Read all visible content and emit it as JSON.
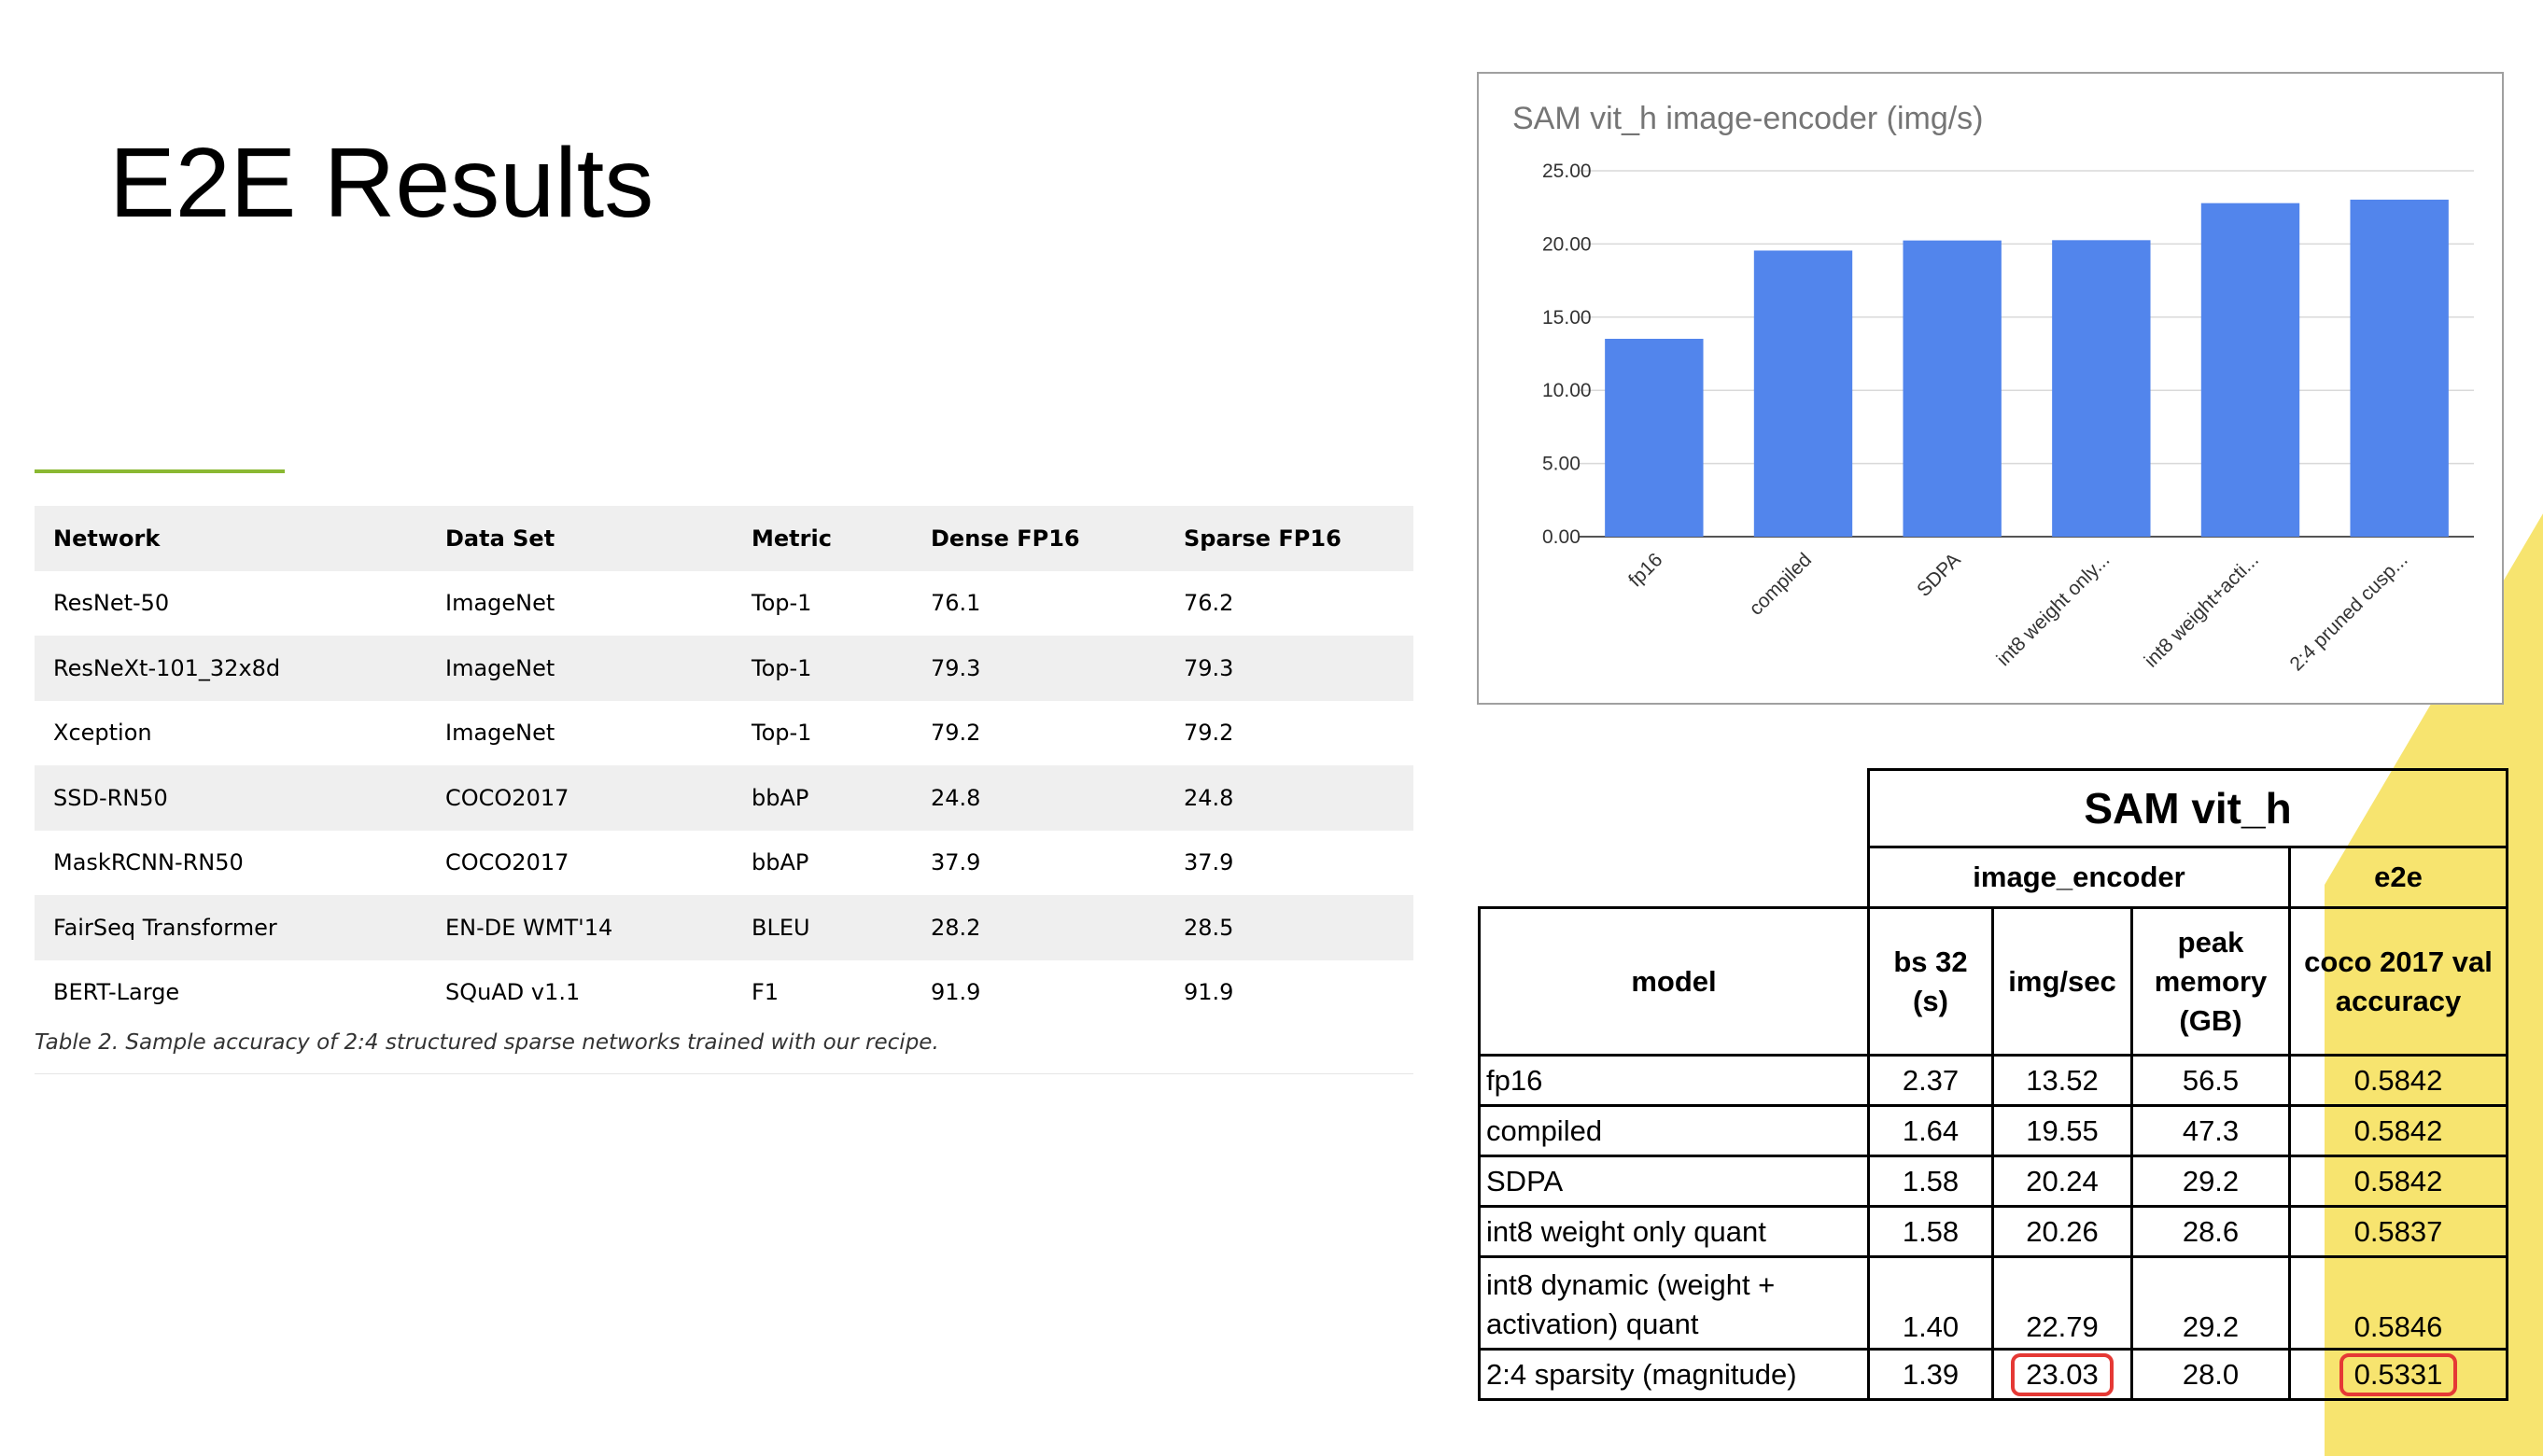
{
  "slide": {
    "title": "E2E Results"
  },
  "accuracy_table": {
    "headers": [
      "Network",
      "Data Set",
      "Metric",
      "Dense FP16",
      "Sparse FP16"
    ],
    "rows": [
      [
        "ResNet-50",
        "ImageNet",
        "Top-1",
        "76.1",
        "76.2"
      ],
      [
        "ResNeXt-101_32x8d",
        "ImageNet",
        "Top-1",
        "79.3",
        "79.3"
      ],
      [
        "Xception",
        "ImageNet",
        "Top-1",
        "79.2",
        "79.2"
      ],
      [
        "SSD-RN50",
        "COCO2017",
        "bbAP",
        "24.8",
        "24.8"
      ],
      [
        "MaskRCNN-RN50",
        "COCO2017",
        "bbAP",
        "37.9",
        "37.9"
      ],
      [
        "FairSeq Transformer",
        "EN-DE WMT'14",
        "BLEU",
        "28.2",
        "28.5"
      ],
      [
        "BERT-Large",
        "SQuAD v1.1",
        "F1",
        "91.9",
        "91.9"
      ]
    ],
    "caption": "Table 2. Sample accuracy of 2:4 structured sparse networks trained with our recipe."
  },
  "chart_data": {
    "type": "bar",
    "title": "SAM vit_h image-encoder (img/s)",
    "categories": [
      "fp16",
      "compiled",
      "SDPA",
      "int8 weight only...",
      "int8 weight+acti...",
      "2:4 pruned cusp..."
    ],
    "values": [
      13.52,
      19.55,
      20.24,
      20.26,
      22.79,
      23.03
    ],
    "yticks": [
      "0.00",
      "5.00",
      "10.00",
      "15.00",
      "20.00",
      "25.00"
    ],
    "ylim": [
      0,
      25
    ],
    "grid": true,
    "bar_color": "#5285ec"
  },
  "sam_table": {
    "title": "SAM vit_h",
    "group_image_encoder": "image_encoder",
    "group_e2e": "e2e",
    "col_model": "model",
    "col_bs": "bs 32 (s)",
    "col_imgsec": "img/sec",
    "col_mem": "peak memory (GB)",
    "col_acc": "coco 2017 val accuracy",
    "rows": [
      [
        "fp16",
        "2.37",
        "13.52",
        "56.5",
        "0.5842"
      ],
      [
        "compiled",
        "1.64",
        "19.55",
        "47.3",
        "0.5842"
      ],
      [
        "SDPA",
        "1.58",
        "20.24",
        "29.2",
        "0.5842"
      ],
      [
        "int8 weight only quant",
        "1.58",
        "20.26",
        "28.6",
        "0.5837"
      ],
      [
        "int8 dynamic (weight + activation) quant",
        "1.40",
        "22.79",
        "29.2",
        "0.5846"
      ],
      [
        "2:4 sparsity (magnitude)",
        "1.39",
        "23.03",
        "28.0",
        "0.5331"
      ]
    ],
    "highlight_color": "#e53935"
  }
}
